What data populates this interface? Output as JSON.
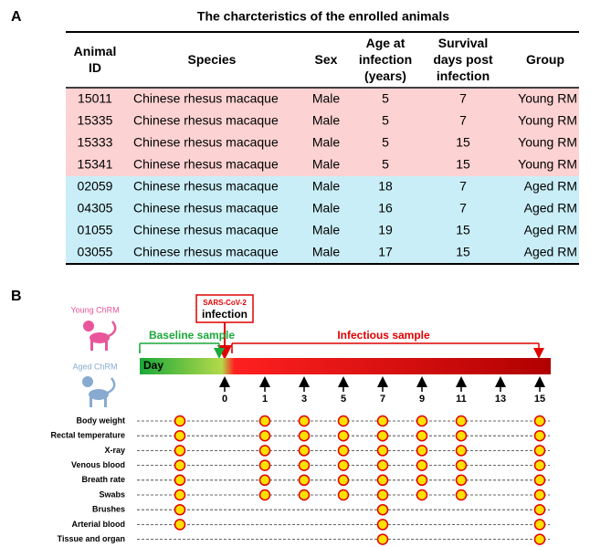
{
  "panel_a": {
    "label": "A",
    "title": "The charcteristics of the enrolled animals",
    "table": {
      "header": [
        "Animal ID",
        "Species",
        "Sex",
        "Age at infection (years)",
        "Survival days post infection",
        "Group"
      ],
      "rows": [
        [
          "15011",
          "Chinese rhesus macaque",
          "Male",
          "5",
          "7",
          "Young RM"
        ],
        [
          "15335",
          "Chinese rhesus macaque",
          "Male",
          "5",
          "7",
          "Young RM"
        ],
        [
          "15333",
          "Chinese rhesus macaque",
          "Male",
          "5",
          "15",
          "Young RM"
        ],
        [
          "15341",
          "Chinese rhesus macaque",
          "Male",
          "5",
          "15",
          "Young RM"
        ],
        [
          "02059",
          "Chinese rhesus macaque",
          "Male",
          "18",
          "7",
          "Aged RM"
        ],
        [
          "04305",
          "Chinese rhesus macaque",
          "Male",
          "16",
          "7",
          "Aged RM"
        ],
        [
          "01055",
          "Chinese rhesus macaque",
          "Male",
          "19",
          "15",
          "Aged RM"
        ],
        [
          "03055",
          "Chinese rhesus macaque",
          "Male",
          "17",
          "15",
          "Aged RM"
        ]
      ]
    }
  },
  "panel_b": {
    "label": "B",
    "young_label": "Young ChRM",
    "aged_label": "Aged ChRM",
    "virus": "SARS-CoV-2",
    "infection": "infection",
    "baseline_label": "Baseline sample",
    "infectious_label": "Infectious sample",
    "day_label": "Day",
    "days": [
      0,
      1,
      3,
      5,
      7,
      9,
      11,
      13,
      15
    ],
    "samples": [
      {
        "label": "Body weight",
        "baseline": true,
        "days": [
          1,
          3,
          5,
          7,
          9,
          11,
          15
        ]
      },
      {
        "label": "Rectal temperature",
        "baseline": true,
        "days": [
          1,
          3,
          5,
          7,
          9,
          11,
          15
        ]
      },
      {
        "label": "X-ray",
        "baseline": true,
        "days": [
          1,
          3,
          5,
          7,
          9,
          11,
          15
        ]
      },
      {
        "label": "Venous blood",
        "baseline": true,
        "days": [
          1,
          3,
          5,
          7,
          9,
          11,
          15
        ]
      },
      {
        "label": "Breath rate",
        "baseline": true,
        "days": [
          1,
          3,
          5,
          7,
          9,
          11,
          15
        ]
      },
      {
        "label": "Swabs",
        "baseline": true,
        "days": [
          1,
          3,
          5,
          7,
          9,
          11,
          15
        ]
      },
      {
        "label": "Brushes",
        "baseline": true,
        "days": [
          7,
          15
        ]
      },
      {
        "label": "Arterial blood",
        "baseline": true,
        "days": [
          7,
          15
        ]
      },
      {
        "label": "Tissue and organ",
        "baseline": false,
        "days": [
          7,
          15
        ]
      }
    ]
  }
}
